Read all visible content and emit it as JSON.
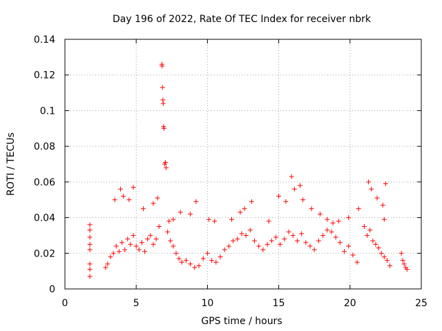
{
  "chart_data": {
    "type": "scatter",
    "title": "Day 196 of 2022, Rate Of TEC Index for receiver nbrk",
    "xlabel": "GPS time / hours",
    "ylabel": "ROTI / TECUs",
    "xlim": [
      0,
      25
    ],
    "ylim": [
      0,
      0.14
    ],
    "xticks": [
      "0",
      "5",
      "10",
      "15",
      "20",
      "25"
    ],
    "yticks": [
      "0",
      "0.02",
      "0.04",
      "0.06",
      "0.08",
      "0.1",
      "0.12",
      "0.14"
    ],
    "grid": true,
    "marker": "+",
    "color": "#ff0000",
    "series": [
      {
        "x": [
          1.75,
          1.75,
          1.75,
          1.75,
          1.75,
          1.75,
          1.75,
          1.75,
          2.85,
          3.0,
          3.2,
          3.4,
          3.6,
          3.8,
          4.0,
          4.2,
          4.4,
          4.6,
          4.8,
          5.0,
          5.2,
          5.4,
          5.6,
          5.8,
          6.0,
          6.2,
          6.4,
          6.6,
          6.8,
          6.82,
          6.85,
          6.87,
          6.9,
          6.92,
          6.95,
          7.0,
          7.05,
          7.1,
          7.2,
          7.4,
          7.6,
          7.8,
          8.0,
          8.2,
          8.5,
          8.8,
          9.1,
          9.4,
          9.7,
          10.0,
          10.3,
          10.6,
          10.9,
          11.2,
          11.5,
          11.8,
          12.1,
          12.4,
          12.7,
          13.0,
          13.3,
          13.6,
          13.9,
          14.2,
          14.5,
          14.8,
          15.1,
          15.4,
          15.7,
          16.0,
          16.3,
          16.6,
          16.9,
          17.2,
          17.5,
          17.8,
          18.1,
          18.4,
          18.7,
          19.0,
          19.3,
          19.6,
          19.9,
          20.2,
          20.5,
          21.0,
          21.2,
          21.4,
          21.6,
          21.8,
          22.0,
          22.2,
          22.4,
          22.6,
          22.8,
          23.6,
          23.7,
          23.8,
          23.9,
          24.0,
          3.5,
          3.9,
          4.1,
          4.5,
          4.8,
          5.5,
          6.2,
          6.5,
          7.3,
          7.6,
          8.1,
          8.8,
          9.2,
          10.1,
          10.5,
          11.7,
          12.3,
          12.6,
          13.1,
          14.3,
          15.0,
          15.5,
          15.9,
          16.1,
          16.5,
          16.7,
          17.3,
          17.9,
          18.4,
          18.8,
          19.2,
          19.9,
          20.6,
          21.3,
          21.5,
          21.9,
          22.3,
          22.4,
          22.5
        ],
        "y": [
          0.036,
          0.033,
          0.029,
          0.025,
          0.022,
          0.014,
          0.011,
          0.007,
          0.012,
          0.014,
          0.018,
          0.02,
          0.024,
          0.021,
          0.026,
          0.022,
          0.028,
          0.025,
          0.03,
          0.024,
          0.022,
          0.026,
          0.021,
          0.028,
          0.03,
          0.025,
          0.028,
          0.035,
          0.126,
          0.125,
          0.113,
          0.106,
          0.104,
          0.091,
          0.09,
          0.07,
          0.071,
          0.068,
          0.032,
          0.027,
          0.024,
          0.02,
          0.017,
          0.015,
          0.016,
          0.014,
          0.012,
          0.013,
          0.017,
          0.02,
          0.016,
          0.015,
          0.018,
          0.022,
          0.024,
          0.027,
          0.028,
          0.031,
          0.03,
          0.033,
          0.027,
          0.024,
          0.022,
          0.025,
          0.027,
          0.029,
          0.025,
          0.028,
          0.032,
          0.03,
          0.027,
          0.031,
          0.026,
          0.024,
          0.022,
          0.027,
          0.03,
          0.033,
          0.032,
          0.029,
          0.026,
          0.021,
          0.024,
          0.019,
          0.015,
          0.035,
          0.03,
          0.033,
          0.027,
          0.025,
          0.023,
          0.02,
          0.018,
          0.016,
          0.013,
          0.02,
          0.016,
          0.014,
          0.012,
          0.011,
          0.05,
          0.056,
          0.052,
          0.05,
          0.057,
          0.045,
          0.048,
          0.051,
          0.038,
          0.039,
          0.043,
          0.042,
          0.049,
          0.039,
          0.038,
          0.039,
          0.043,
          0.045,
          0.049,
          0.038,
          0.052,
          0.049,
          0.063,
          0.056,
          0.058,
          0.05,
          0.045,
          0.042,
          0.039,
          0.037,
          0.038,
          0.04,
          0.045,
          0.06,
          0.056,
          0.051,
          0.047,
          0.039,
          0.059
        ]
      }
    ]
  }
}
